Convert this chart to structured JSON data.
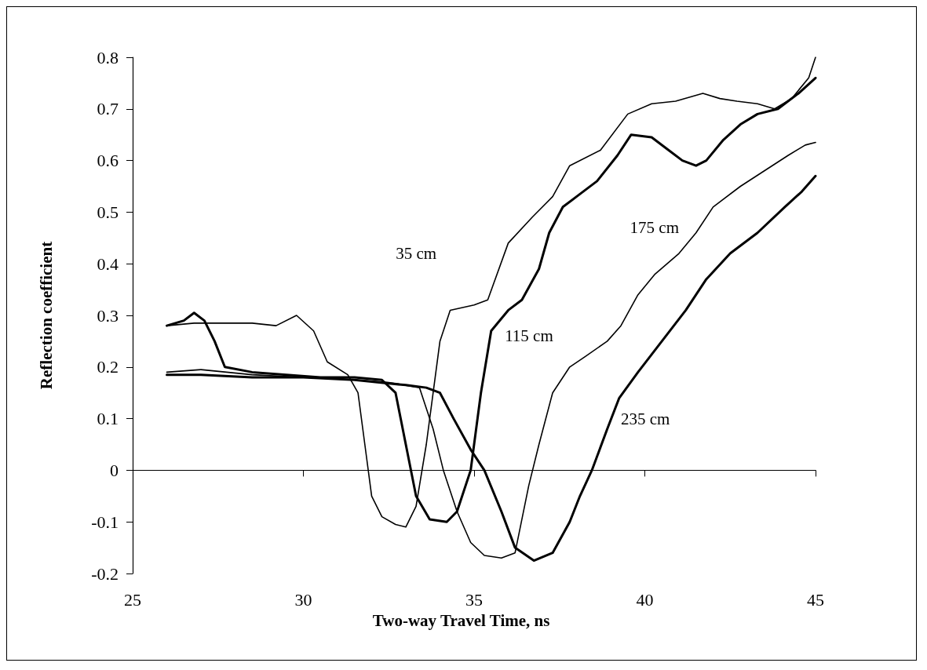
{
  "chart_data": {
    "type": "line",
    "xlabel": "Two-way Travel Time, ns",
    "ylabel": "Reflection coefficient",
    "xlim": [
      25,
      45
    ],
    "xticks": [
      25,
      30,
      35,
      40,
      45
    ],
    "ylim": [
      -0.2,
      0.8
    ],
    "yticks": [
      -0.2,
      -0.1,
      0,
      0.1,
      0.2,
      0.3,
      0.4,
      0.5,
      0.6,
      0.7,
      0.8
    ],
    "legend": false,
    "marker": "none",
    "line_style": "solid",
    "series": [
      {
        "name": "35 cm",
        "color": "#000000",
        "x": [
          26,
          26.8,
          27.5,
          28.5,
          29.2,
          29.8,
          30.3,
          30.7,
          31.3,
          31.6,
          31.8,
          32.0,
          32.3,
          32.7,
          33.0,
          33.3,
          33.6,
          34.0,
          34.3,
          35.0,
          35.4,
          36.0,
          36.7,
          37.3,
          37.8,
          38.7,
          39.5,
          40.2,
          40.9,
          41.7,
          42.2,
          42.7,
          43.3,
          43.8,
          44.3,
          44.8,
          45
        ],
        "values": [
          0.28,
          0.285,
          0.285,
          0.285,
          0.28,
          0.3,
          0.27,
          0.21,
          0.185,
          0.15,
          0.05,
          -0.05,
          -0.09,
          -0.105,
          -0.11,
          -0.07,
          0.05,
          0.25,
          0.31,
          0.32,
          0.33,
          0.44,
          0.49,
          0.53,
          0.59,
          0.62,
          0.69,
          0.71,
          0.715,
          0.73,
          0.72,
          0.715,
          0.71,
          0.7,
          0.72,
          0.76,
          0.8
        ]
      },
      {
        "name": "115 cm",
        "color": "#000000",
        "x": [
          26,
          26.5,
          26.8,
          27.1,
          27.4,
          27.7,
          28.5,
          29.5,
          30.5,
          31.5,
          32.3,
          32.7,
          33.0,
          33.3,
          33.7,
          34.2,
          34.5,
          34.9,
          35.2,
          35.5,
          36.0,
          36.4,
          36.9,
          37.2,
          37.6,
          38.0,
          38.6,
          39.2,
          39.6,
          40.2,
          40.7,
          41.1,
          41.5,
          41.8,
          42.3,
          42.8,
          43.3,
          43.9,
          44.5,
          45
        ],
        "values": [
          0.28,
          0.29,
          0.305,
          0.29,
          0.25,
          0.2,
          0.19,
          0.185,
          0.18,
          0.18,
          0.175,
          0.15,
          0.05,
          -0.05,
          -0.095,
          -0.1,
          -0.08,
          0.0,
          0.15,
          0.27,
          0.31,
          0.33,
          0.39,
          0.46,
          0.51,
          0.53,
          0.56,
          0.61,
          0.65,
          0.645,
          0.62,
          0.6,
          0.59,
          0.6,
          0.64,
          0.67,
          0.69,
          0.7,
          0.73,
          0.76
        ]
      },
      {
        "name": "175 cm",
        "color": "#000000",
        "x": [
          26,
          27,
          28.5,
          30,
          31.5,
          32.5,
          33.4,
          33.8,
          34.1,
          34.5,
          34.9,
          35.3,
          35.8,
          36.2,
          36.6,
          36.9,
          37.3,
          37.8,
          38.25,
          38.9,
          39.3,
          39.8,
          40.3,
          41.0,
          41.5,
          42.0,
          42.8,
          43.5,
          44.2,
          44.7,
          45
        ],
        "values": [
          0.19,
          0.195,
          0.185,
          0.18,
          0.175,
          0.17,
          0.16,
          0.08,
          0.0,
          -0.08,
          -0.14,
          -0.165,
          -0.17,
          -0.16,
          -0.03,
          0.05,
          0.15,
          0.2,
          0.22,
          0.25,
          0.28,
          0.34,
          0.38,
          0.42,
          0.46,
          0.51,
          0.55,
          0.58,
          0.61,
          0.63,
          0.635
        ]
      },
      {
        "name": "235 cm",
        "color": "#000000",
        "x": [
          26,
          27,
          28.5,
          30,
          31.5,
          33,
          33.6,
          34.0,
          34.4,
          34.9,
          35.3,
          35.8,
          36.2,
          36.75,
          37.3,
          37.8,
          38.1,
          38.45,
          38.9,
          39.25,
          39.8,
          40.5,
          41.2,
          41.8,
          42.5,
          43.3,
          44.1,
          44.6,
          45
        ],
        "values": [
          0.185,
          0.185,
          0.18,
          0.18,
          0.175,
          0.165,
          0.16,
          0.15,
          0.1,
          0.04,
          0.0,
          -0.08,
          -0.15,
          -0.175,
          -0.16,
          -0.1,
          -0.05,
          0.0,
          0.08,
          0.14,
          0.19,
          0.25,
          0.31,
          0.37,
          0.42,
          0.46,
          0.51,
          0.54,
          0.57
        ]
      }
    ]
  }
}
